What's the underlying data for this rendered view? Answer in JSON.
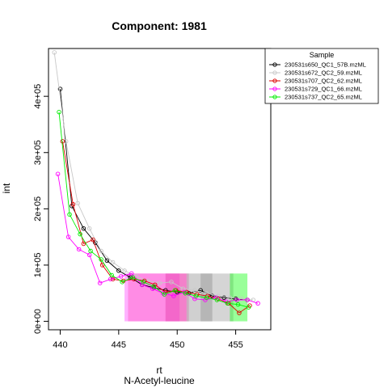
{
  "chart_data": {
    "type": "line",
    "title": "Component: 1981",
    "xlabel": "rt",
    "sublabel": "N-Acetyl-leucine",
    "ylabel": "int",
    "xlim": [
      439.0,
      458.0
    ],
    "ylim": [
      -15000,
      485000
    ],
    "x_ticks": [
      440,
      445,
      450,
      455
    ],
    "x_tick_labels": [
      "440",
      "445",
      "450",
      "455"
    ],
    "y_ticks": [
      0,
      100000,
      200000,
      300000,
      400000
    ],
    "y_tick_labels": [
      "0e+00",
      "1e+05",
      "2e+05",
      "3e+05",
      "4e+05"
    ],
    "grid": false,
    "legend": {
      "title": "Sample",
      "placement": "top-right outside"
    },
    "shaded_regions": [
      {
        "x_start": 445.5,
        "x_end": 450.2,
        "color": "#ff00ff",
        "opacity": 0.3
      },
      {
        "x_start": 445.8,
        "x_end": 450.8,
        "color": "#ff66cc",
        "opacity": 0.5
      },
      {
        "x_start": 449.0,
        "x_end": 451.0,
        "color": "#dd2299",
        "opacity": 0.35
      },
      {
        "x_start": 450.8,
        "x_end": 453.0,
        "color": "#aaaaaa",
        "opacity": 0.55
      },
      {
        "x_start": 452.0,
        "x_end": 454.8,
        "color": "#888888",
        "opacity": 0.35
      },
      {
        "x_start": 454.5,
        "x_end": 456.0,
        "color": "#00ff00",
        "opacity": 0.4
      }
    ],
    "series": [
      {
        "name": "230531s650_QC1_57B.mzML",
        "color": "#000000",
        "marker": "circle",
        "x": [
          440.0,
          441.0,
          442.0,
          443.0,
          444.0,
          445.0,
          446.0,
          447.0,
          448.0,
          449.0,
          450.0,
          451.0,
          452.0,
          453.0,
          454.0,
          455.0,
          456.0
        ],
        "y": [
          413000,
          205000,
          165000,
          140000,
          108000,
          90000,
          78000,
          65000,
          60000,
          55000,
          52000,
          50000,
          55000,
          45000,
          42000,
          40000,
          38000
        ]
      },
      {
        "name": "230531s672_QC2_59.mzML",
        "color": "#c8c8c8",
        "marker": "circle",
        "x": [
          439.5,
          440.5,
          441.5,
          442.5,
          443.5,
          444.5,
          445.5,
          446.5,
          447.5,
          448.5,
          449.5,
          450.5,
          451.5,
          452.5,
          453.5,
          454.5,
          455.5,
          456.5
        ],
        "y": [
          478000,
          320000,
          210000,
          165000,
          125000,
          105000,
          90000,
          80000,
          72000,
          68000,
          70000,
          58000,
          55000,
          50000,
          45000,
          42000,
          40000,
          38000
        ]
      },
      {
        "name": "230531s707_QC2_62.mzML",
        "color": "#dd0000",
        "marker": "circle",
        "x": [
          440.2,
          441.1,
          442.0,
          442.8,
          443.6,
          444.5,
          445.4,
          446.3,
          447.2,
          448.1,
          449.0,
          449.9,
          450.8,
          451.7,
          452.6,
          453.5,
          454.4,
          455.3,
          456.2
        ],
        "y": [
          320000,
          208000,
          138000,
          145000,
          100000,
          75000,
          72000,
          75000,
          72000,
          65000,
          52000,
          55000,
          52000,
          48000,
          45000,
          40000,
          32000,
          15000,
          28000
        ]
      },
      {
        "name": "230531s729_QC1_66.mzML",
        "color": "#ff00ff",
        "marker": "circle",
        "x": [
          439.8,
          440.7,
          441.6,
          442.5,
          443.4,
          444.3,
          445.2,
          446.1,
          447.0,
          447.9,
          448.8,
          449.7,
          450.6,
          451.5,
          452.4,
          453.3,
          454.2,
          455.1,
          456.0,
          456.9
        ],
        "y": [
          262000,
          150000,
          128000,
          118000,
          68000,
          75000,
          80000,
          85000,
          65000,
          58000,
          50000,
          45000,
          52000,
          40000,
          38000,
          42000,
          35000,
          38000,
          38000,
          32000
        ]
      },
      {
        "name": "230531s737_QC2_65.mzML",
        "color": "#00ee00",
        "marker": "circle",
        "x": [
          439.9,
          440.8,
          441.7,
          442.6,
          443.5,
          444.4,
          445.3,
          446.2,
          447.1,
          448.0,
          448.9,
          449.8,
          450.7,
          451.6,
          452.5,
          453.4,
          454.3,
          455.2,
          456.1
        ],
        "y": [
          372000,
          190000,
          155000,
          125000,
          110000,
          82000,
          70000,
          78000,
          70000,
          62000,
          48000,
          55000,
          50000,
          45000,
          42000,
          38000,
          32000,
          30000,
          25000
        ]
      }
    ]
  }
}
